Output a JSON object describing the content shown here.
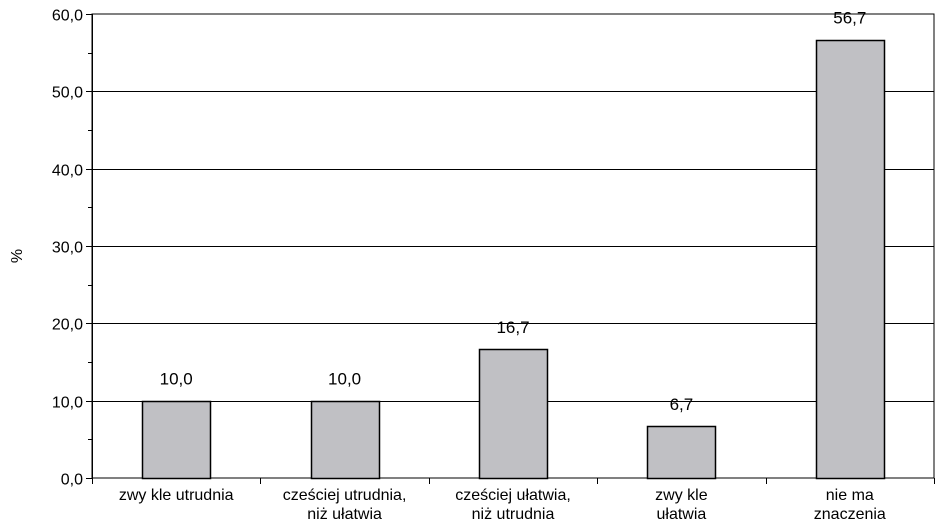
{
  "chart_data": {
    "type": "bar",
    "categories": [
      [
        "zwy kle utrudnia"
      ],
      [
        "cześciej utrudnia,",
        "niż ułatwia"
      ],
      [
        "cześciej ułatwia,",
        "niż utrudnia"
      ],
      [
        "zwy kle",
        "ułatwia"
      ],
      [
        "nie ma",
        "znaczenia"
      ]
    ],
    "values": [
      10.0,
      10.0,
      16.7,
      6.7,
      56.7
    ],
    "data_labels": [
      "10,0",
      "10,0",
      "16,7",
      "6,7",
      "56,7"
    ],
    "ylabel": "%",
    "xlabel": "",
    "ylim": [
      0,
      60
    ],
    "yticks": [
      0,
      10,
      20,
      30,
      40,
      50,
      60
    ],
    "ytick_labels": [
      "0,0",
      "10,0",
      "20,0",
      "30,0",
      "40,0",
      "50,0",
      "60,0"
    ],
    "grid": true,
    "legend": "none",
    "colors": {
      "bar_fill": "#c0c0c4",
      "bar_stroke": "#000000",
      "grid": "#000000",
      "axis": "#000000",
      "background": "#ffffff"
    }
  }
}
